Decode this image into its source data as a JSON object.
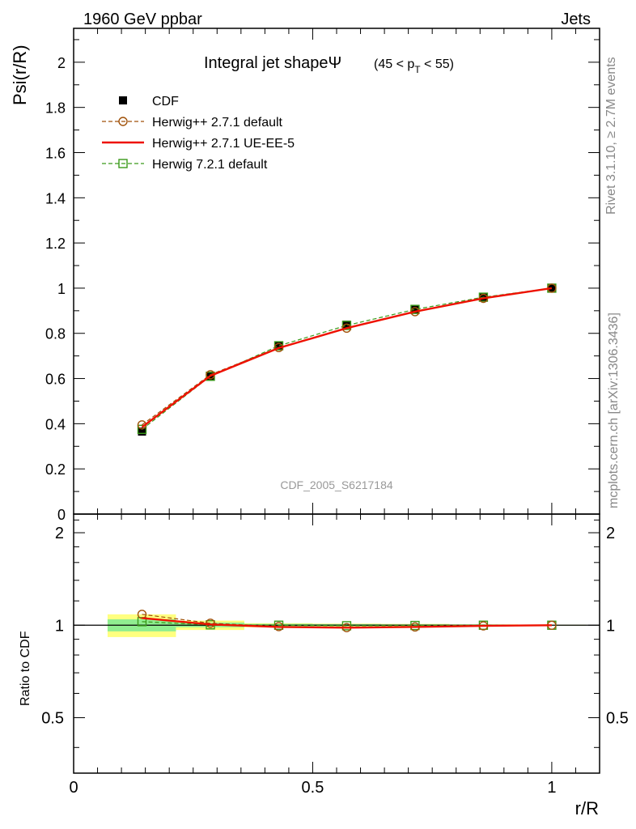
{
  "header": {
    "left_title": "1960 GeV ppbar",
    "right_title": "Jets"
  },
  "side_labels": {
    "rivet": "Rivet 3.1.10, ≥ 2.7M events",
    "mcplots": "mcplots.cern.ch [arXiv:1306.3436]"
  },
  "colors": {
    "cdf": "#000000",
    "herwigpp_default": "#a0520a",
    "herwigpp_ueee5": "#ee1100",
    "herwig7": "#3a9a1a",
    "band_inner": "#90ee90",
    "band_outer": "#ffff80"
  },
  "chart_data": [
    {
      "type": "line",
      "title_main": "Integral jet shapeΨ",
      "title_sub_pre": "(45 < p",
      "title_sub_index": "T",
      "title_sub_post": " < 55)",
      "ylabel": "Psi(r/R)",
      "analysis_id": "CDF_2005_S6217184",
      "xlim": [
        0,
        1.1
      ],
      "ylim": [
        0,
        2.15
      ],
      "y_ticks": [
        "0",
        "0.2",
        "0.4",
        "0.6",
        "0.8",
        "1",
        "1.2",
        "1.4",
        "1.6",
        "1.8",
        "2"
      ],
      "legend_position": "top-left",
      "x": [
        0.143,
        0.286,
        0.429,
        0.571,
        0.714,
        0.857,
        1.0
      ],
      "series": [
        {
          "name": "CDF",
          "style": "markers",
          "values": [
            0.365,
            0.608,
            0.745,
            0.838,
            0.908,
            0.96,
            1.0
          ]
        },
        {
          "name": "Herwig++ 2.7.1 default",
          "style": "dashed-circle",
          "values": [
            0.395,
            0.617,
            0.737,
            0.823,
            0.896,
            0.955,
            1.0
          ]
        },
        {
          "name": "Herwig++ 2.7.1 UE-EE-5",
          "style": "solid",
          "values": [
            0.385,
            0.612,
            0.735,
            0.823,
            0.896,
            0.955,
            1.0
          ]
        },
        {
          "name": "Herwig 7.2.1 default",
          "style": "dashed-square",
          "values": [
            0.375,
            0.61,
            0.745,
            0.835,
            0.906,
            0.96,
            1.0
          ]
        }
      ]
    },
    {
      "type": "line",
      "ylabel": "Ratio to CDF",
      "xlabel": "r/R",
      "xlim": [
        0,
        1.1
      ],
      "ylim": [
        0.33,
        2.3
      ],
      "x_ticks": [
        "0",
        "0.5",
        "1"
      ],
      "y_ticks": [
        "0.5",
        "1",
        "2"
      ],
      "bands": [
        {
          "x": [
            0.071,
            0.214
          ],
          "inner": [
            0.955,
            1.045
          ],
          "outer": [
            0.915,
            1.085
          ]
        },
        {
          "x": [
            0.214,
            0.357
          ],
          "inner": [
            0.985,
            1.02
          ],
          "outer": [
            0.965,
            1.035
          ]
        },
        {
          "x": [
            0.357,
            0.5
          ],
          "inner": [
            0.99,
            1.01
          ],
          "outer": [
            0.985,
            1.015
          ]
        },
        {
          "x": [
            0.5,
            0.643
          ],
          "inner": [
            0.993,
            1.008
          ],
          "outer": [
            0.988,
            1.012
          ]
        },
        {
          "x": [
            0.643,
            0.786
          ],
          "inner": [
            0.995,
            1.006
          ],
          "outer": [
            0.99,
            1.01
          ]
        },
        {
          "x": [
            0.786,
            0.929
          ],
          "inner": [
            0.997,
            1.004
          ],
          "outer": [
            0.995,
            1.006
          ]
        },
        {
          "x": [
            0.929,
            1.071
          ],
          "inner": [
            0.998,
            1.002
          ],
          "outer": [
            0.997,
            1.003
          ]
        }
      ],
      "series": [
        {
          "name": "Herwig++ 2.7.1 default",
          "style": "dashed-circle",
          "values": [
            1.085,
            1.015,
            0.99,
            0.982,
            0.987,
            0.995,
            1.0
          ]
        },
        {
          "name": "Herwig++ 2.7.1 UE-EE-5",
          "style": "solid",
          "values": [
            1.055,
            1.006,
            0.987,
            0.982,
            0.987,
            0.995,
            1.0
          ]
        },
        {
          "name": "Herwig 7.2.1 default",
          "style": "dashed-square",
          "values": [
            1.027,
            1.003,
            1.0,
            0.996,
            0.998,
            1.0,
            1.0
          ]
        }
      ]
    }
  ]
}
